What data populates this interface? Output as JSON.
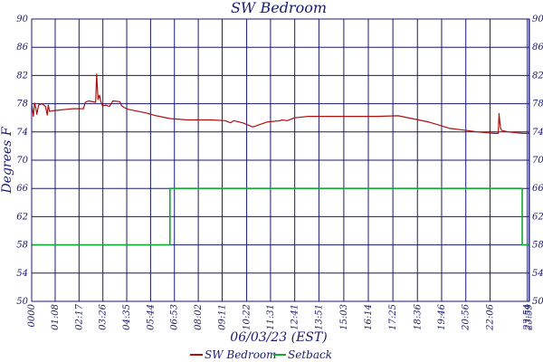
{
  "chart_data": {
    "type": "line",
    "title": "SW Bedroom",
    "xlabel": "06/03/23 (EST)",
    "ylabel": "Degrees F",
    "ylim": [
      50,
      90
    ],
    "yticks": [
      50,
      54,
      58,
      62,
      66,
      70,
      74,
      78,
      82,
      86,
      90
    ],
    "xlim_minutes": [
      0,
      1440
    ],
    "xtick_labels": [
      "0000",
      "01:08",
      "02:17",
      "03:26",
      "04:35",
      "05:44",
      "06:53",
      "08:02",
      "09:11",
      "10:22",
      "11:31",
      "12:41",
      "13:51",
      "15:03",
      "16:14",
      "17:25",
      "18:36",
      "19:46",
      "20:56",
      "22:06",
      "23:54",
      "23:59"
    ],
    "xtick_minutes": [
      0,
      68,
      137,
      206,
      275,
      344,
      413,
      482,
      551,
      622,
      691,
      761,
      831,
      903,
      974,
      1045,
      1116,
      1186,
      1256,
      1326,
      1434,
      1439
    ],
    "grid": true,
    "colors": {
      "axis": "#1a1a6e",
      "grid": "#1a1a6e"
    },
    "series": [
      {
        "name": "SW Bedroom",
        "color": "#aa1111",
        "x_minutes": [
          0,
          5,
          8,
          12,
          15,
          20,
          30,
          40,
          45,
          48,
          52,
          60,
          80,
          100,
          120,
          150,
          155,
          165,
          185,
          188,
          192,
          196,
          200,
          205,
          215,
          225,
          235,
          255,
          260,
          270,
          280,
          300,
          330,
          360,
          400,
          450,
          520,
          560,
          575,
          585,
          610,
          640,
          680,
          720,
          722,
          740,
          760,
          800,
          850,
          900,
          1000,
          1060,
          1100,
          1150,
          1210,
          1260,
          1290,
          1340,
          1350,
          1352,
          1356,
          1360,
          1380,
          1420,
          1440
        ],
        "y": [
          78.0,
          76.2,
          78.1,
          77.4,
          76.5,
          77.8,
          78.0,
          77.6,
          76.4,
          77.8,
          76.9,
          77.0,
          77.1,
          77.2,
          77.3,
          77.3,
          78.2,
          78.4,
          78.2,
          82.2,
          78.6,
          79.2,
          78.3,
          77.7,
          77.8,
          77.6,
          78.4,
          78.3,
          77.7,
          77.4,
          77.2,
          77.0,
          76.7,
          76.3,
          75.9,
          75.7,
          75.7,
          75.6,
          75.3,
          75.6,
          75.3,
          74.7,
          75.4,
          75.6,
          75.7,
          75.6,
          76.0,
          76.2,
          76.2,
          76.2,
          76.2,
          76.3,
          75.9,
          75.4,
          74.5,
          74.2,
          74.0,
          73.8,
          73.8,
          76.6,
          74.6,
          74.2,
          74.0,
          73.8,
          73.8
        ]
      },
      {
        "name": "Setback",
        "color": "#11aa33",
        "x_minutes": [
          0,
          400,
          400,
          1419,
          1419,
          1440
        ],
        "y": [
          58,
          58,
          66,
          66,
          58,
          58
        ]
      }
    ]
  }
}
